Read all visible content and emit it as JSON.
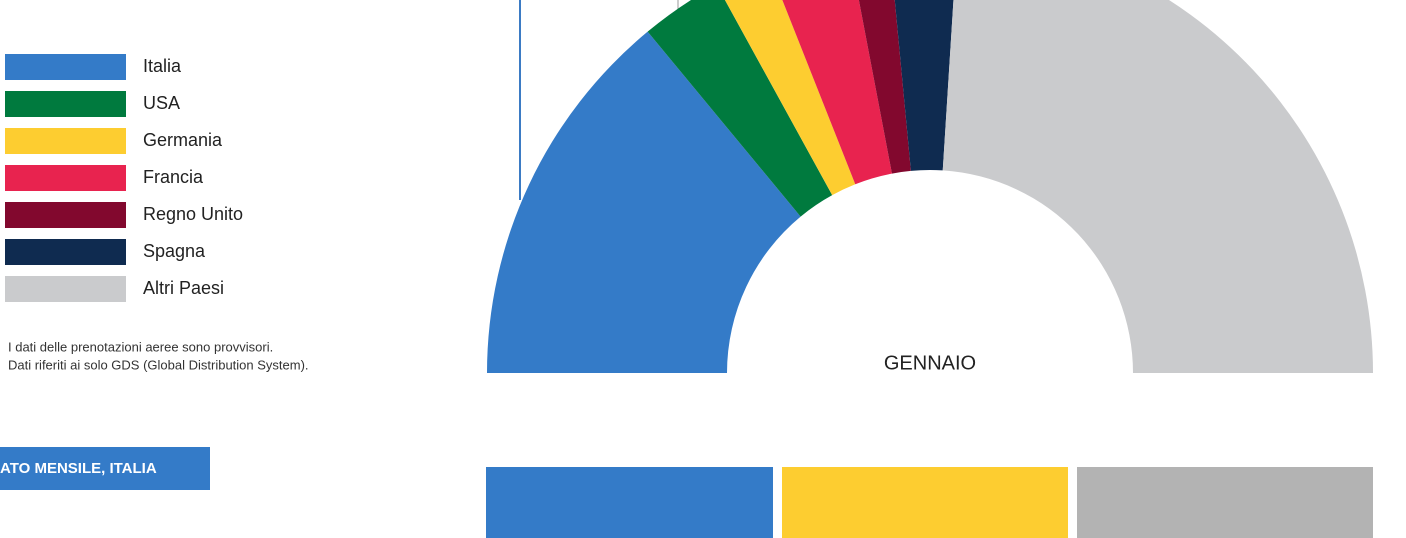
{
  "chart_data": {
    "type": "pie",
    "center_label": "GENNAIO",
    "categories": [
      "Italia",
      "USA",
      "Germania",
      "Francia",
      "Regno Unito",
      "Spagna",
      "Altri Paesi"
    ],
    "values": [
      28,
      6,
      4,
      6,
      3,
      5,
      48
    ],
    "colors": [
      "#347bc8",
      "#007a3e",
      "#fdcd30",
      "#e8234f",
      "#82082e",
      "#0f2b50",
      "#cacbcd"
    ],
    "legend": "left"
  },
  "notes": [
    "I dati delle prenotazioni aeree sono provvisori.",
    "Dati riferiti ai solo GDS (Global Distribution System)."
  ],
  "button": "ATO MENSILE, ITALIA"
}
